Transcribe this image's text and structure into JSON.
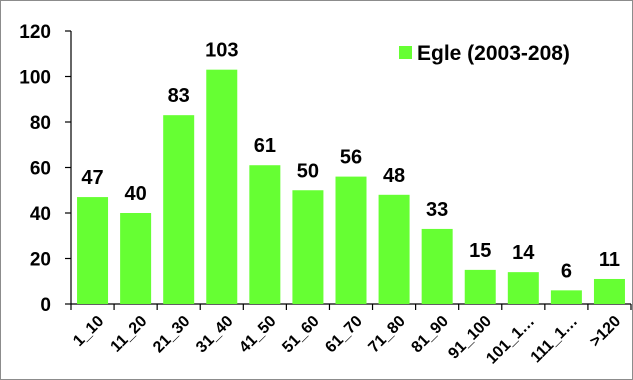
{
  "chart_data": {
    "type": "bar",
    "categories": [
      "1_10",
      "11_20",
      "21_30",
      "31_40",
      "41_50",
      "51_60",
      "61_70",
      "71_80",
      "81_90",
      "91_100",
      "101_1…",
      "111_1…",
      ">120"
    ],
    "series": [
      {
        "name": "Egle (2003-208)",
        "values": [
          47,
          40,
          83,
          103,
          61,
          50,
          56,
          48,
          33,
          15,
          14,
          6,
          11
        ],
        "color": "#66ff33"
      }
    ],
    "ylim": [
      0,
      120
    ],
    "yticks": [
      0,
      20,
      40,
      60,
      80,
      100,
      120
    ],
    "ytick_labels": [
      "0",
      "20",
      "40",
      "60",
      "80",
      "100",
      "120"
    ],
    "data_labels": [
      "47",
      "40",
      "83",
      "103",
      "61",
      "50",
      "56",
      "48",
      "33",
      "15",
      "14",
      "6",
      "11"
    ],
    "grid": false,
    "legend_position": "top-right",
    "title": "",
    "xlabel": "",
    "ylabel": ""
  }
}
